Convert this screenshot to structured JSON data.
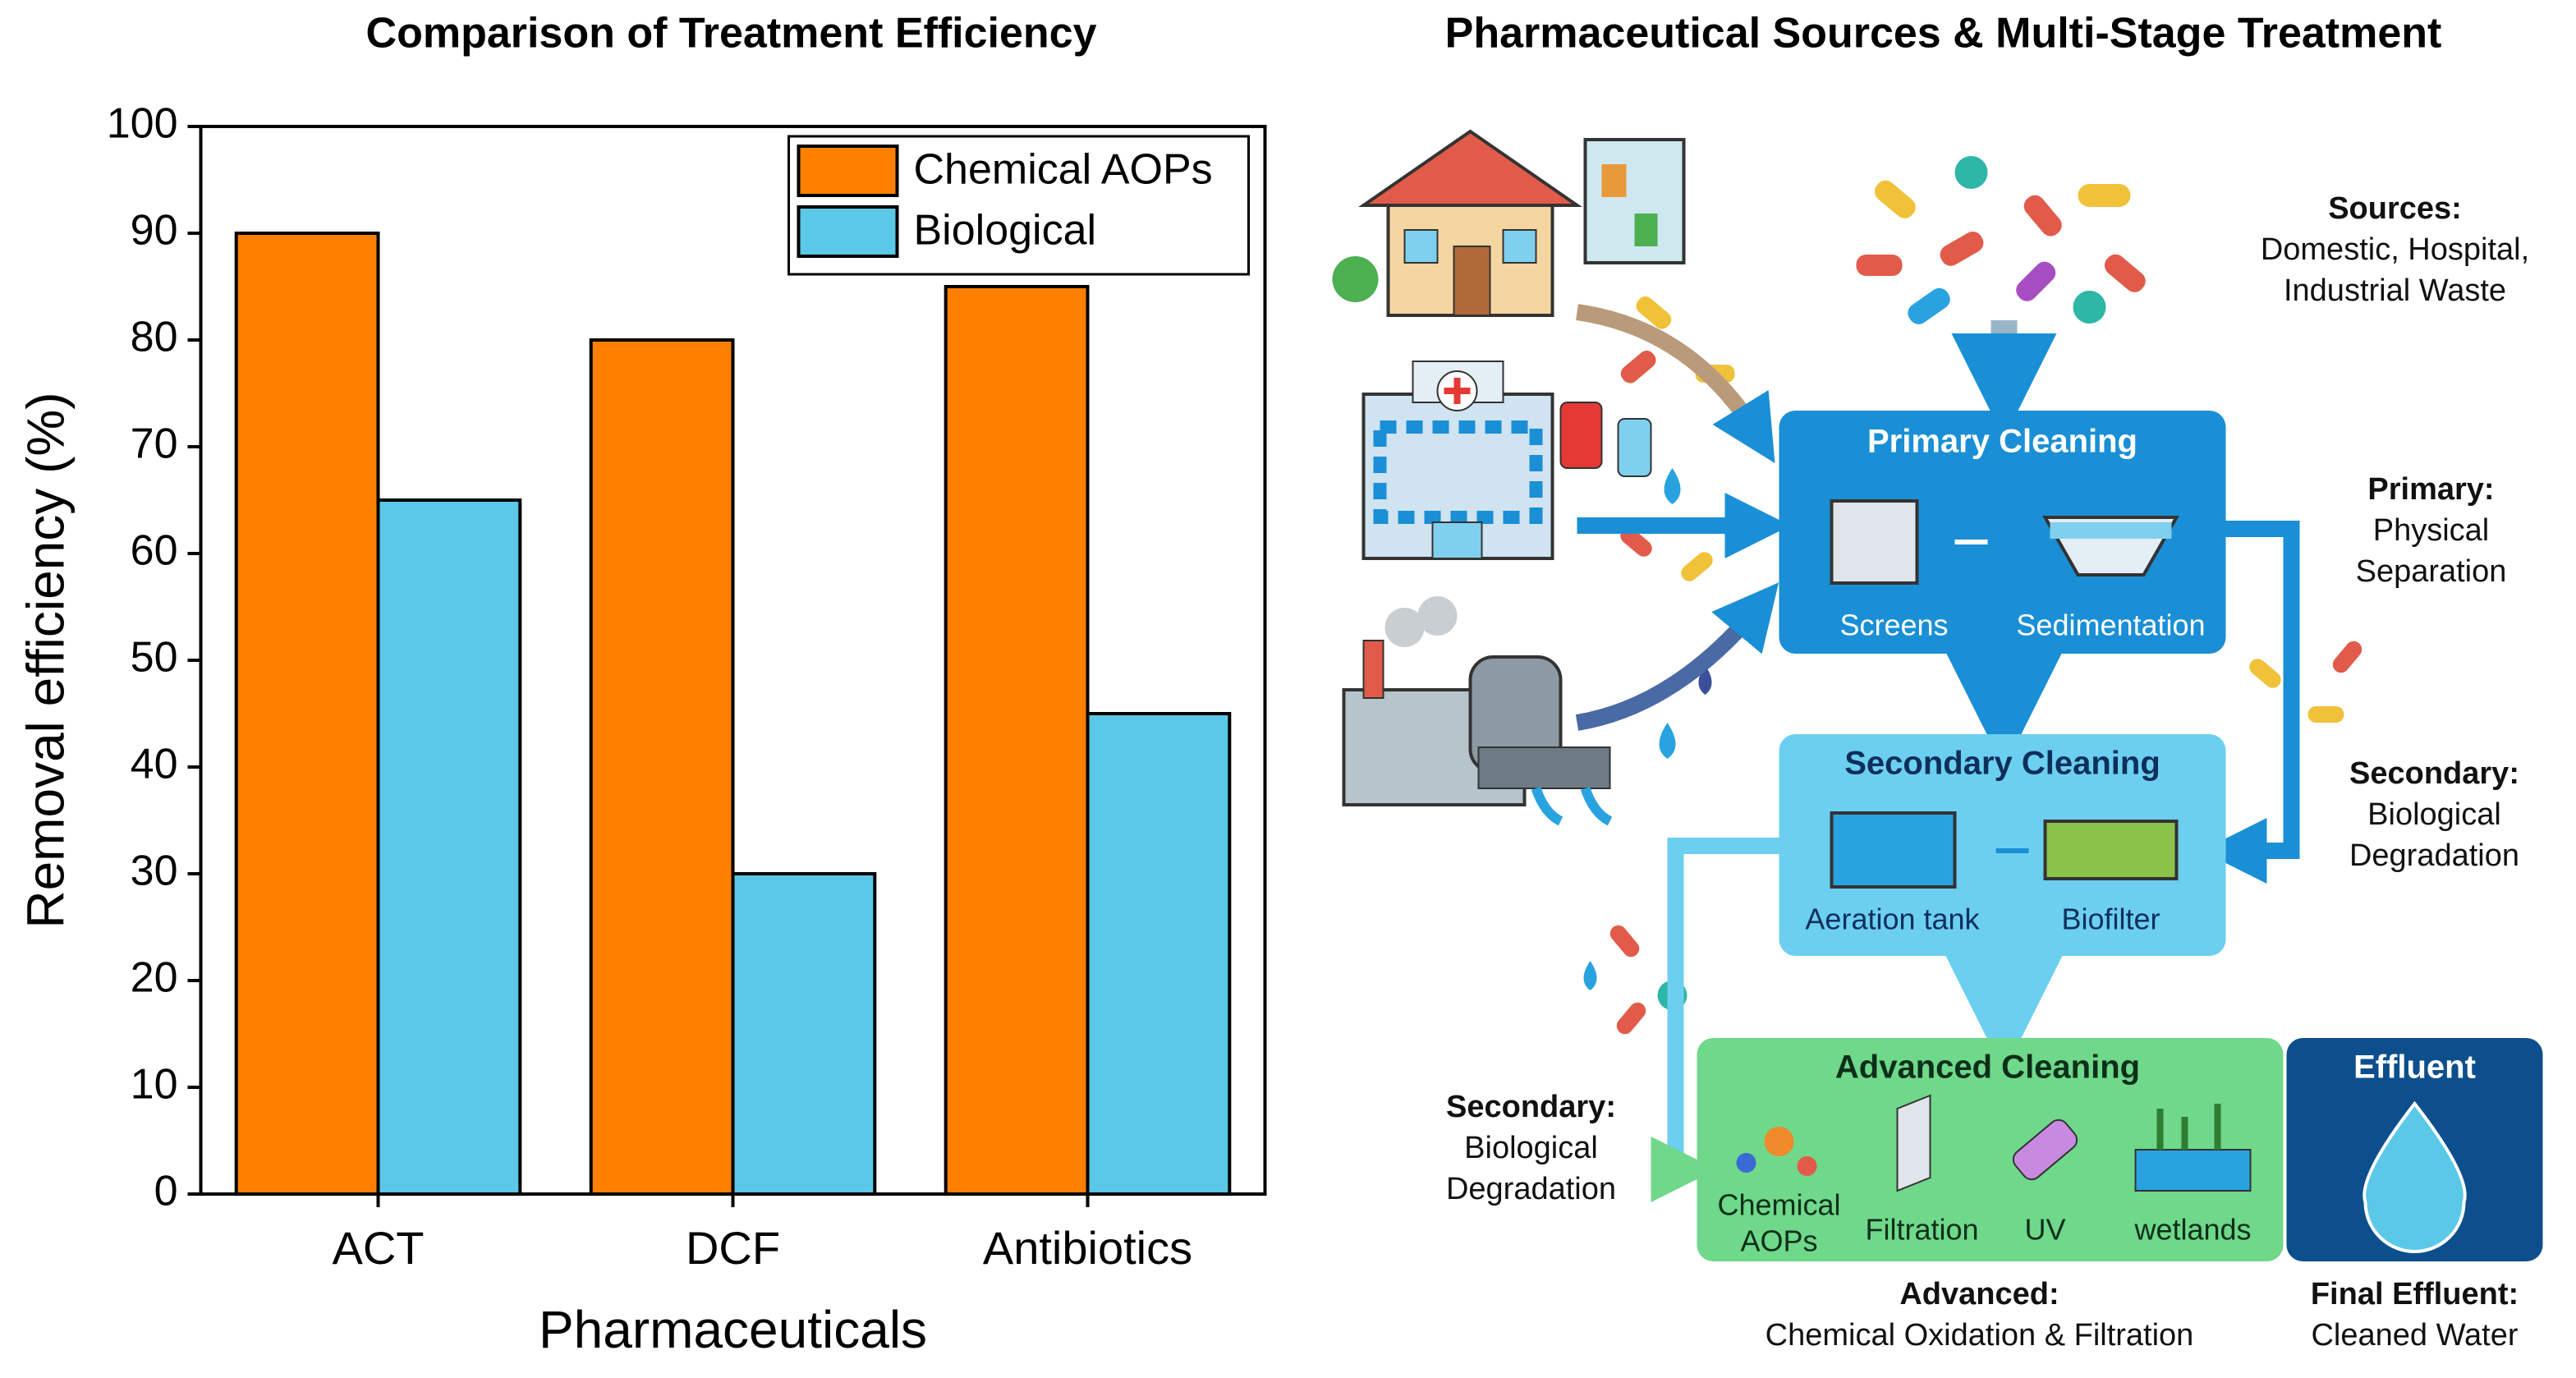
{
  "chart_data": {
    "type": "bar",
    "title": "Comparison of Treatment Efficiency",
    "categories": [
      "ACT",
      "DCF",
      "Antibiotics"
    ],
    "series": [
      {
        "name": "Chemical AOPs",
        "color": "#ff8000",
        "values": [
          90,
          80,
          85
        ]
      },
      {
        "name": "Biological",
        "color": "#5bc8e8",
        "values": [
          65,
          30,
          45
        ]
      }
    ],
    "x_label": "Pharmaceuticals",
    "y_label": "Removal efficiency (%)",
    "ylim": [
      0,
      100
    ],
    "yticks": [
      0,
      10,
      20,
      30,
      40,
      50,
      60,
      70,
      80,
      90,
      100
    ],
    "grid": false,
    "legend": "upper right"
  },
  "diagram": {
    "title": "Pharmaceutical Sources & Multi-Stage Treatment",
    "stages": [
      {
        "title": "Primary Cleaning",
        "steps": [
          [
            "Screens"
          ],
          [
            "Sedimentation"
          ]
        ]
      },
      {
        "title": "Secondary Cleaning",
        "steps": [
          [
            "Aeration tank"
          ],
          [
            "Biofilter"
          ]
        ]
      },
      {
        "title": "Advanced Cleaning",
        "steps": [
          [
            "Chemical",
            "AOPs"
          ],
          [
            "Filtration"
          ],
          [
            "UV"
          ],
          [
            "wetlands"
          ]
        ]
      },
      {
        "title": "Effluent",
        "steps": []
      }
    ],
    "notes": [
      {
        "label": "Sources:",
        "lines": [
          "Domestic, Hospital,",
          "Industrial Waste"
        ]
      },
      {
        "label": "Primary:",
        "lines": [
          "Physical",
          "Separation"
        ]
      },
      {
        "label": "Secondary:",
        "lines": [
          "Biological",
          "Degradation"
        ]
      },
      {
        "label": "Secondary:",
        "lines": [
          "Biological",
          "Degradation"
        ]
      },
      {
        "label": "Advanced:",
        "lines": [
          "Chemical Oxidation & Filtration"
        ]
      },
      {
        "label": "Final Effluent:",
        "lines": [
          "Cleaned Water"
        ]
      }
    ]
  }
}
